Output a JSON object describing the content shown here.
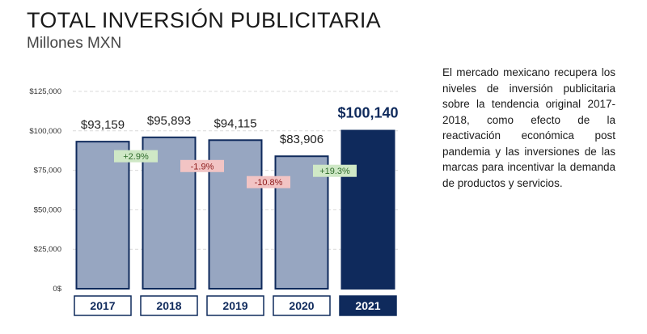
{
  "header": {
    "title": "TOTAL INVERSIÓN PUBLICITARIA",
    "subtitle": "Millones MXN"
  },
  "description": "El mercado mexicano recupera los niveles de inversión publicitaria sobre la tendencia original 2017-2018, como efecto de la reactivación económica post pandemia y las inversiones de las marcas para incentivar la demanda de productos y servicios.",
  "colors": {
    "bar": "#97a6c1",
    "bar_border": "#0f2a5c",
    "highlight": "#0f2a5c",
    "growth_bg": "#cfe8c6",
    "growth_text": "#2e6b2b",
    "decline_bg": "#f2c4c4",
    "decline_text": "#8c1a1a"
  },
  "chart_data": {
    "type": "bar",
    "categories": [
      "2017",
      "2018",
      "2019",
      "2020",
      "2021"
    ],
    "values": [
      93159,
      95893,
      94115,
      83906,
      100140
    ],
    "value_labels": [
      "$93,159",
      "$95,893",
      "$94,115",
      "$83,906",
      "$100,140"
    ],
    "highlight_index": 4,
    "changes": [
      "+2.9%",
      "-1.9%",
      "-10.8%",
      "+19.3%"
    ],
    "change_types": [
      "growth",
      "decline",
      "decline",
      "growth"
    ],
    "ylim": [
      0,
      125000
    ],
    "yticks": [
      0,
      25000,
      50000,
      75000,
      100000,
      125000
    ],
    "ytick_labels": [
      "0$",
      "$25,000",
      "$50,000",
      "$75,000",
      "$100,000",
      "$125,000"
    ],
    "grid": true,
    "legend": "none"
  }
}
